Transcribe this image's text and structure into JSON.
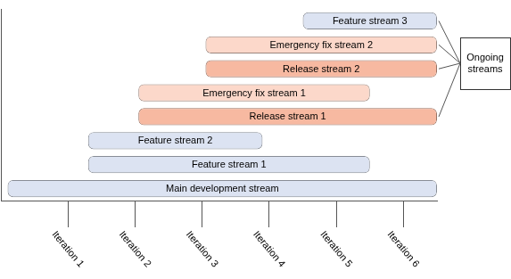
{
  "chart_data": {
    "type": "bar",
    "orientation": "horizontal",
    "categories": [
      "Feature stream 3",
      "Emergency fix stream 2",
      "Release stream 2",
      "Emergency fix stream 1",
      "Release stream 1",
      "Feature stream 2",
      "Feature stream 1",
      "Main development stream"
    ],
    "values": [
      [
        4.5,
        6.5
      ],
      [
        3.05,
        6.5
      ],
      [
        3.05,
        6.5
      ],
      [
        2.05,
        5.5
      ],
      [
        2.05,
        6.5
      ],
      [
        1.3,
        3.9
      ],
      [
        1.3,
        5.5
      ],
      [
        0.1,
        6.5
      ]
    ],
    "colors": [
      "#dce3f2",
      "#fcd8ca",
      "#f7b9a1",
      "#fcd8ca",
      "#f7b9a1",
      "#dce3f2",
      "#dce3f2",
      "#dce3f2"
    ],
    "xlim": [
      0,
      6.5
    ],
    "xticks": [
      {
        "value": 1,
        "label": "Iteration 1"
      },
      {
        "value": 2,
        "label": "Iteration 2"
      },
      {
        "value": 3,
        "label": "Iteration 3"
      },
      {
        "value": 4,
        "label": "Iteration 4"
      },
      {
        "value": 5,
        "label": "Iteration 5"
      },
      {
        "value": 6,
        "label": "Iteration 6"
      }
    ],
    "grid": false,
    "tick_labels": "x",
    "annotations": [
      {
        "text": "Ongoing streams",
        "targets": [
          "Feature stream 3",
          "Emergency fix stream 2",
          "Release stream 2",
          "Release stream 1"
        ]
      }
    ]
  }
}
